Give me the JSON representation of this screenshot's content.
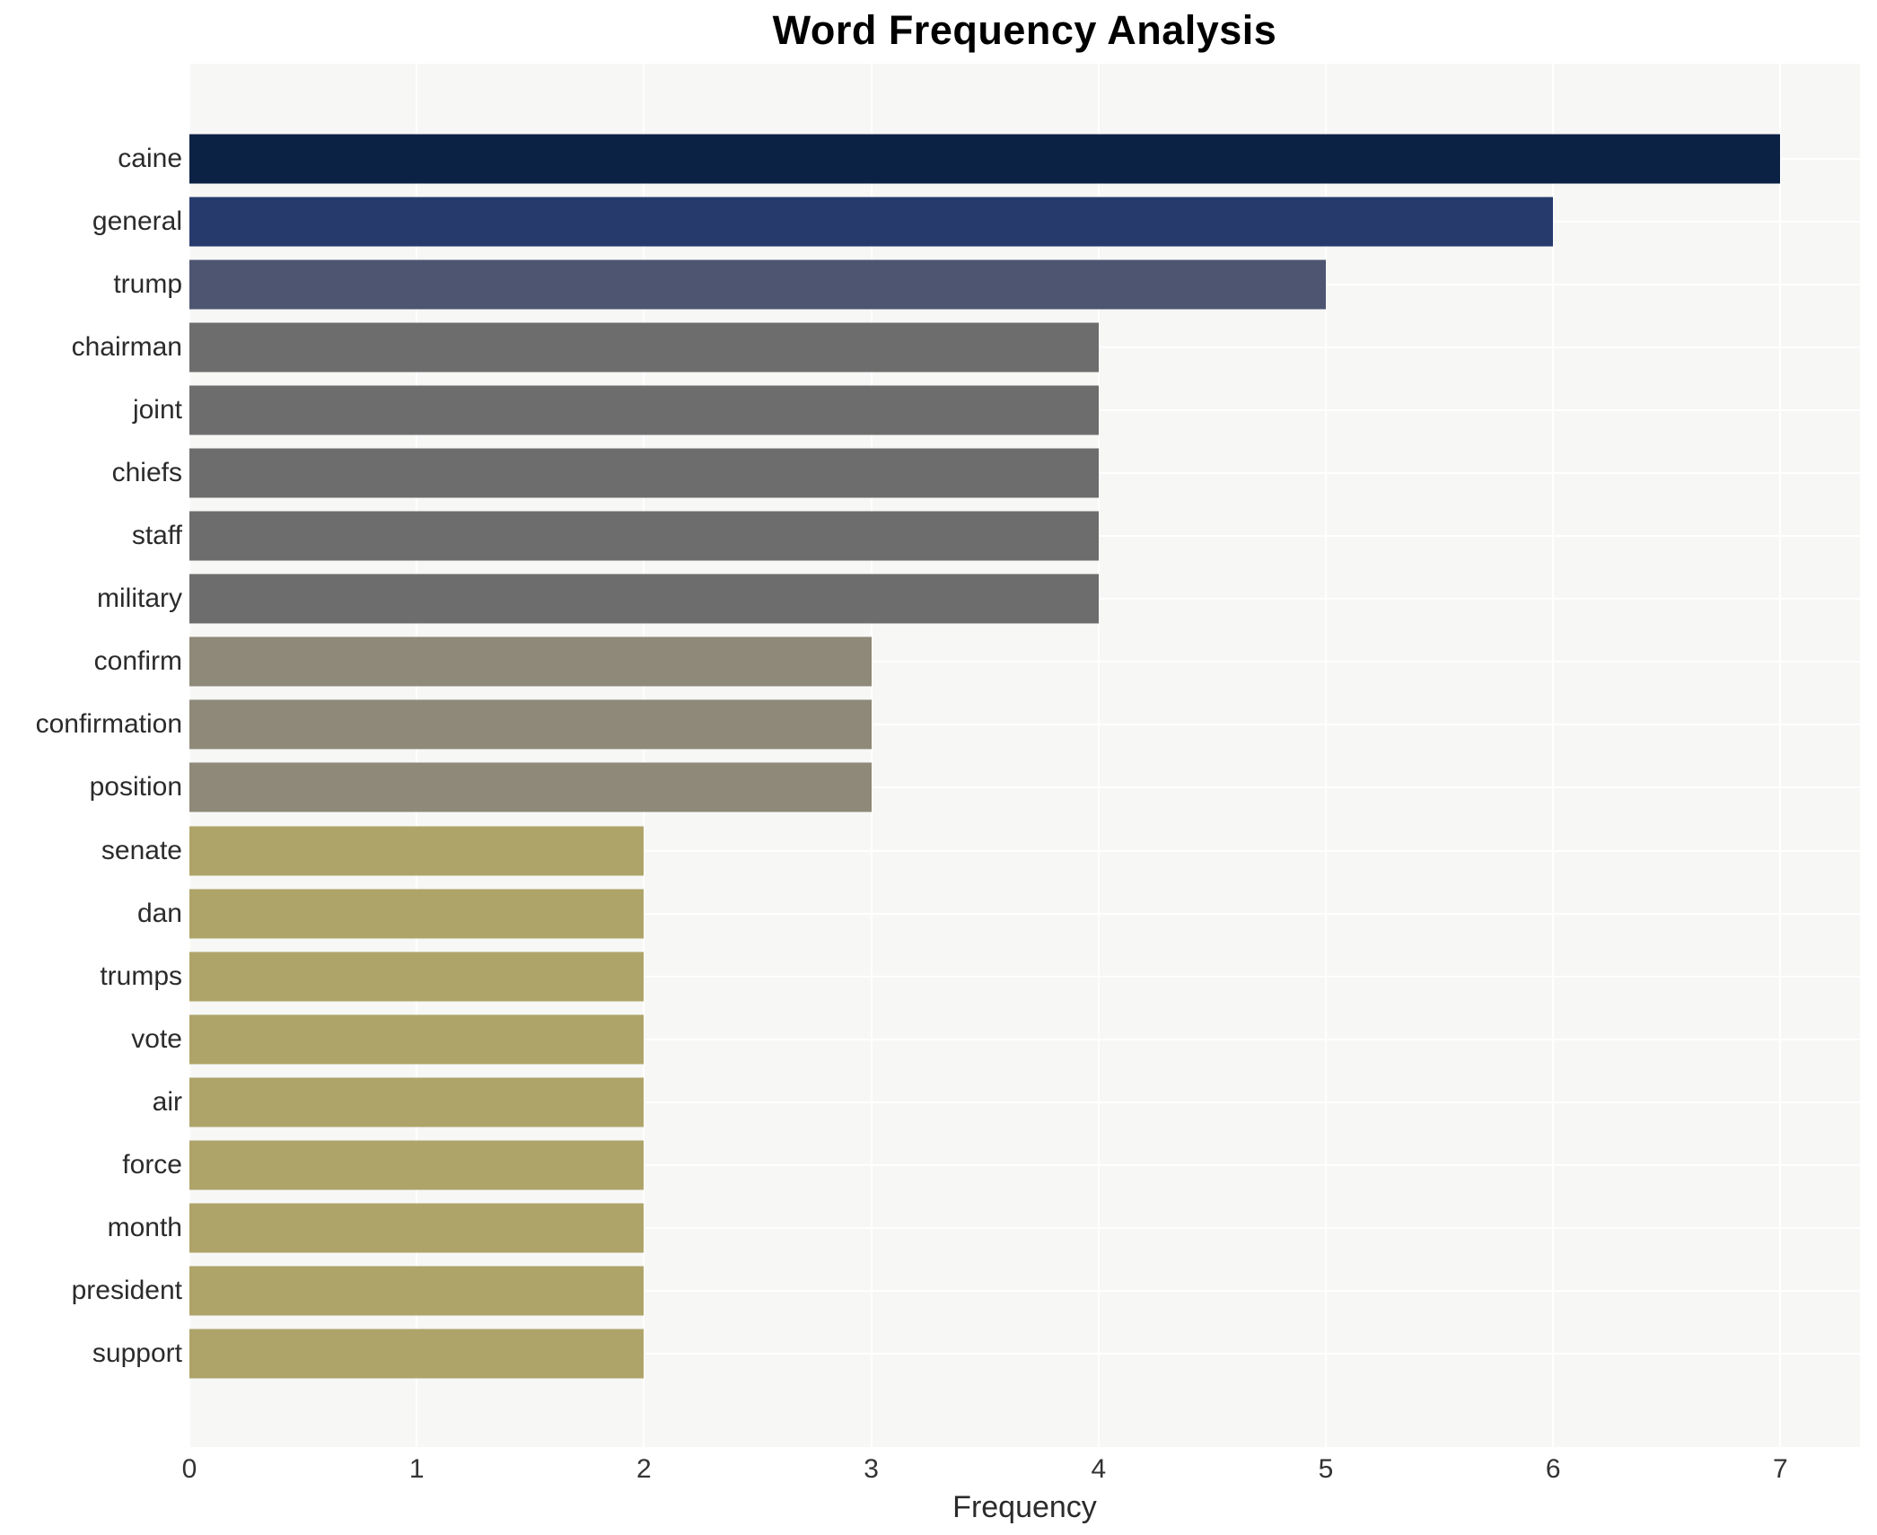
{
  "chart_data": {
    "type": "bar",
    "orientation": "horizontal",
    "title": "Word Frequency Analysis",
    "xlabel": "Frequency",
    "ylabel": "",
    "categories": [
      "caine",
      "general",
      "trump",
      "chairman",
      "joint",
      "chiefs",
      "staff",
      "military",
      "confirm",
      "confirmation",
      "position",
      "senate",
      "dan",
      "trumps",
      "vote",
      "air",
      "force",
      "month",
      "president",
      "support"
    ],
    "values": [
      7,
      6,
      5,
      4,
      4,
      4,
      4,
      4,
      3,
      3,
      3,
      2,
      2,
      2,
      2,
      2,
      2,
      2,
      2,
      2
    ],
    "xticks": [
      0,
      1,
      2,
      3,
      4,
      5,
      6,
      7
    ],
    "xlim": [
      0,
      7.35
    ],
    "grid": true,
    "legend_position": "none",
    "colors": {
      "plot_background": "#f7f7f6",
      "figure_background": "#ffffff",
      "gridline": "#ffffff",
      "title_text": "#000000",
      "label_text": "#2b2b2b",
      "tick_text": "#333333",
      "bar_color_by_value": {
        "7": "#0c2244",
        "6": "#263b6c",
        "5": "#4d5571",
        "4": "#6d6d6e",
        "3": "#8e8978",
        "2": "#aea469"
      }
    }
  }
}
